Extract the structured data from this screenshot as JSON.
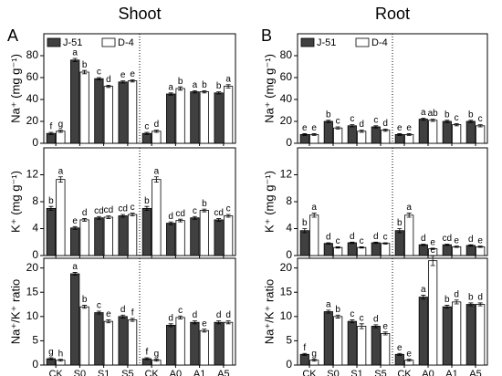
{
  "titles": [
    {
      "letter": "A",
      "title": "Shoot"
    },
    {
      "letter": "B",
      "title": "Root"
    }
  ],
  "chart_data": [
    {
      "type": "bar",
      "ylabel": "Na⁺ (mg g⁻¹)",
      "ylim": [
        0,
        100
      ],
      "yticks": [
        0,
        20,
        40,
        60,
        80
      ],
      "legend": "upper left",
      "series": [
        {
          "name": "J-51",
          "color": "#404040",
          "values": [
            9,
            76,
            59,
            56,
            9,
            45,
            47,
            46
          ],
          "errors": [
            1,
            1.5,
            1,
            1,
            1,
            1,
            1,
            1
          ],
          "letters": [
            "f",
            "a",
            "c",
            "e",
            "c",
            "a",
            "a",
            "b"
          ]
        },
        {
          "name": "D-4",
          "color": "#ffffff",
          "values": [
            11,
            65,
            52,
            57,
            11,
            50,
            47,
            52
          ],
          "errors": [
            1,
            1.5,
            1,
            1,
            1,
            1.5,
            1,
            1.5
          ],
          "letters": [
            "g",
            "b",
            "d",
            "e",
            "d",
            "b",
            "b",
            "a"
          ]
        }
      ]
    },
    {
      "type": "bar",
      "ylabel": "K⁺ (mg g⁻¹)",
      "ylim": [
        0,
        16
      ],
      "yticks": [
        0,
        4,
        8,
        12
      ],
      "series": [
        {
          "color": "#404040",
          "values": [
            7,
            4.1,
            5.6,
            5.9,
            7,
            4.8,
            5.6,
            5.3
          ],
          "errors": [
            0.3,
            0.2,
            0.2,
            0.2,
            0.3,
            0.2,
            0.2,
            0.2
          ],
          "letters": [
            "b",
            "e",
            "cd",
            "cd",
            "b",
            "d",
            "c",
            "cd"
          ]
        },
        {
          "color": "#ffffff",
          "values": [
            11.3,
            5.3,
            5.7,
            6.1,
            11.3,
            5.2,
            6.7,
            5.9
          ],
          "errors": [
            0.4,
            0.2,
            0.2,
            0.2,
            0.4,
            0.2,
            0.2,
            0.2
          ],
          "letters": [
            "a",
            "d",
            "cd",
            "c",
            "a",
            "cd",
            "b",
            "c"
          ]
        }
      ]
    },
    {
      "type": "bar",
      "ylabel": "Na⁺/K⁺ ratio",
      "ylim": [
        0,
        22
      ],
      "yticks": [
        0,
        5,
        10,
        15,
        20
      ],
      "categories": [
        "CK",
        "S0",
        "S1",
        "S5",
        "CK",
        "A0",
        "A1",
        "A5"
      ],
      "series": [
        {
          "color": "#404040",
          "values": [
            1.3,
            18.8,
            10.8,
            10,
            1.3,
            8.2,
            8.8,
            8.8
          ],
          "errors": [
            0.2,
            0.3,
            0.3,
            0.3,
            0.2,
            0.3,
            0.3,
            0.3
          ],
          "letters": [
            "g",
            "a",
            "c",
            "d",
            "f",
            "d",
            "d",
            "d"
          ]
        },
        {
          "color": "#ffffff",
          "values": [
            1.0,
            12,
            9,
            9.3,
            1.0,
            9.8,
            7.1,
            8.8
          ],
          "errors": [
            0.2,
            0.3,
            0.3,
            0.3,
            0.2,
            0.3,
            0.3,
            0.3
          ],
          "letters": [
            "h",
            "b",
            "e",
            "f",
            "g",
            "c",
            "e",
            "d"
          ]
        }
      ]
    },
    {
      "type": "bar",
      "ylabel": "Na⁺ (mg g⁻¹)",
      "ylim": [
        0,
        100
      ],
      "yticks": [
        0,
        20,
        40,
        60,
        80
      ],
      "legend": "upper left",
      "series": [
        {
          "name": "J-51",
          "color": "#404040",
          "values": [
            8,
            20,
            16,
            15,
            8,
            22,
            20,
            20
          ],
          "errors": [
            0.8,
            1,
            1,
            1,
            0.8,
            1,
            1,
            1
          ],
          "letters": [
            "e",
            "b",
            "c",
            "c",
            "e",
            "a",
            "b",
            "b"
          ]
        },
        {
          "name": "D-4",
          "color": "#ffffff",
          "values": [
            8,
            14,
            11,
            12,
            8,
            21,
            17,
            16
          ],
          "errors": [
            0.8,
            1,
            1,
            1,
            0.8,
            1,
            1,
            1
          ],
          "letters": [
            "e",
            "c",
            "d",
            "d",
            "e",
            "ab",
            "c",
            "c"
          ]
        }
      ]
    },
    {
      "type": "bar",
      "ylabel": "K⁺ (mg g⁻¹)",
      "ylim": [
        0,
        16
      ],
      "yticks": [
        0,
        4,
        8,
        12
      ],
      "series": [
        {
          "color": "#404040",
          "values": [
            3.7,
            1.8,
            1.9,
            1.9,
            3.7,
            1.6,
            1.6,
            1.5
          ],
          "errors": [
            0.3,
            0.1,
            0.1,
            0.1,
            0.3,
            0.1,
            0.1,
            0.1
          ],
          "letters": [
            "b",
            "d",
            "d",
            "d",
            "b",
            "d",
            "cd",
            "d"
          ]
        },
        {
          "color": "#ffffff",
          "values": [
            6.0,
            1.2,
            1.2,
            1.8,
            6.0,
            1.0,
            1.3,
            1.3
          ],
          "errors": [
            0.3,
            0.1,
            0.1,
            0.1,
            0.3,
            0.1,
            0.1,
            0.1
          ],
          "letters": [
            "a",
            "c",
            "c",
            "c",
            "a",
            "e",
            "e",
            "e"
          ]
        }
      ]
    },
    {
      "type": "bar",
      "ylabel": "Na⁺/K⁺ ratio",
      "ylim": [
        0,
        22
      ],
      "yticks": [
        0,
        5,
        10,
        15,
        20
      ],
      "categories": [
        "CK",
        "S0",
        "S1",
        "S5",
        "CK",
        "A0",
        "A1",
        "A5"
      ],
      "series": [
        {
          "color": "#404040",
          "values": [
            2.2,
            11,
            9,
            8,
            2.2,
            14,
            12,
            12.5
          ],
          "errors": [
            0.2,
            0.3,
            0.3,
            0.3,
            0.2,
            0.4,
            0.3,
            0.3
          ],
          "letters": [
            "f",
            "a",
            "c",
            "d",
            "e",
            "a",
            "b",
            "b"
          ]
        },
        {
          "color": "#ffffff",
          "values": [
            1.0,
            10,
            8,
            6.5,
            1.0,
            21.5,
            13,
            12.5
          ],
          "errors": [
            0.2,
            0.3,
            0.5,
            0.3,
            0.2,
            1,
            0.4,
            0.3
          ],
          "letters": [
            "g",
            "b",
            "c",
            "e",
            "e",
            "c",
            "d",
            "d"
          ]
        }
      ]
    }
  ]
}
